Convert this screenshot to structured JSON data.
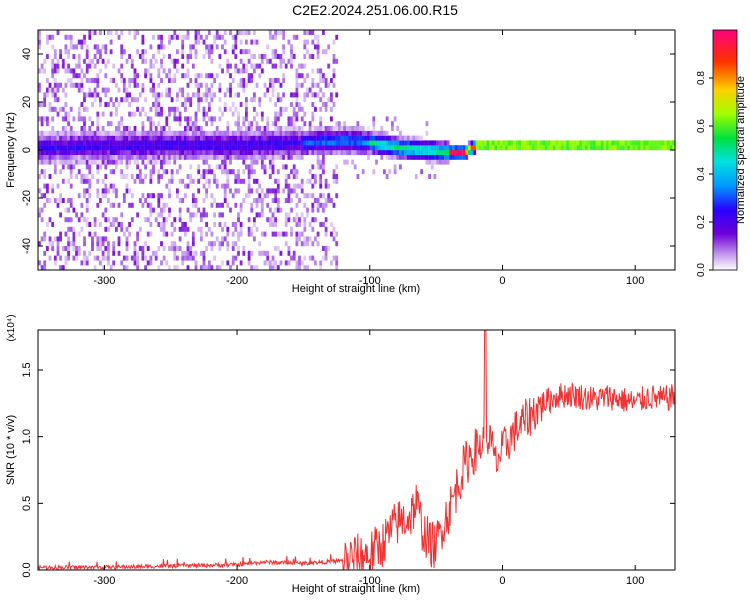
{
  "title": "C2E2.2024.251.06.00.R15",
  "chart_data": [
    {
      "type": "heatmap",
      "xlabel": "Height of straight line (km)",
      "ylabel": "Frequency (Hz)",
      "xlim": [
        -350,
        130
      ],
      "ylim": [
        -50,
        50
      ],
      "xticks": [
        -300,
        -200,
        -100,
        0,
        100
      ],
      "yticks": [
        -40,
        -20,
        0,
        20,
        40
      ],
      "colorbar": {
        "label": "Normalized spectral amplitude",
        "range": [
          0,
          1
        ],
        "ticks": [
          "0.0",
          "0.2",
          "0.4",
          "0.6",
          "0.8"
        ],
        "colors": [
          "#ffffff",
          "#c8a0f0",
          "#7000d8",
          "#2a00ff",
          "#0098ff",
          "#00e0e0",
          "#00e040",
          "#a0ff00",
          "#ffd000",
          "#ff3000",
          "#ff0080"
        ]
      },
      "ridge": {
        "description_points_x": [
          -350,
          -250,
          -200,
          -150,
          -120,
          -100,
          -80,
          -60,
          -40,
          -30,
          -20,
          0,
          50,
          100,
          130
        ],
        "center_freq_hz": [
          0,
          1,
          1,
          2,
          3,
          2,
          0,
          -1,
          -2,
          -2,
          1,
          1,
          1,
          1,
          1
        ]
      }
    },
    {
      "type": "line",
      "xlabel": "Height of straight line (km)",
      "ylabel": "SNR (10 * v/v)",
      "multiplier": "(x10⁴)",
      "xlim": [
        -350,
        130
      ],
      "ylim": [
        0,
        1.8
      ],
      "xticks": [
        -300,
        -200,
        -100,
        0,
        100
      ],
      "yticks": [
        "0.0",
        "0.5",
        "1.0",
        "1.5"
      ],
      "color": "#ee3333",
      "x": [
        -350,
        -300,
        -250,
        -200,
        -180,
        -150,
        -120,
        -100,
        -90,
        -80,
        -70,
        -65,
        -60,
        -55,
        -50,
        -45,
        -40,
        -35,
        -30,
        -25,
        -20,
        -15,
        -10,
        -5,
        0,
        10,
        20,
        30,
        40,
        50,
        60,
        70,
        80,
        90,
        100,
        110,
        120,
        130
      ],
      "y": [
        0.02,
        0.02,
        0.03,
        0.04,
        0.06,
        0.05,
        0.07,
        0.12,
        0.2,
        0.35,
        0.4,
        0.5,
        0.3,
        0.2,
        0.18,
        0.35,
        0.45,
        0.6,
        0.75,
        0.85,
        0.9,
        0.95,
        1.0,
        0.8,
        0.9,
        1.05,
        1.15,
        1.25,
        1.3,
        1.32,
        1.3,
        1.28,
        1.3,
        1.28,
        1.25,
        1.3,
        1.28,
        1.3
      ],
      "spike": {
        "x": -13,
        "y": 1.8
      }
    }
  ]
}
